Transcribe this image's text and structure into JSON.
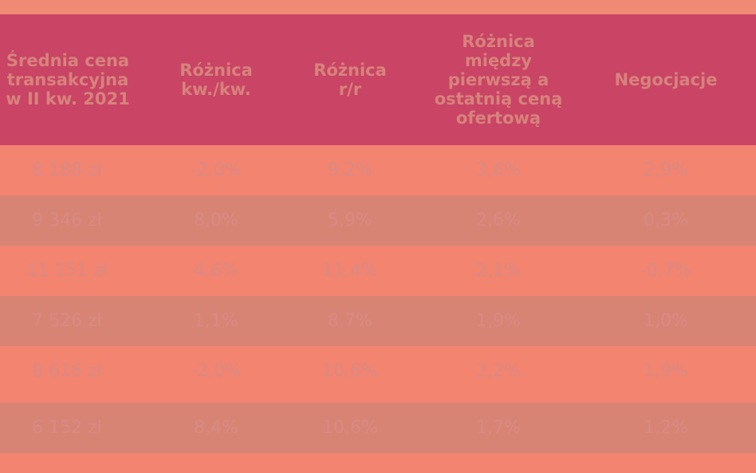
{
  "chart_data": {
    "type": "table",
    "columns": [
      "Średnia cena\ntransakcyjna\nw II kw. 2021",
      "Różnica\nkw./kw.",
      "Różnica\nr/r",
      "Różnica\nmiędzy\npierwszą a\nostatnią ceną\nofertową",
      "Negocjacje"
    ],
    "rows": [
      [
        "8 188 zł",
        "-2,0%",
        "9,2%",
        "3,6%",
        "2,9%"
      ],
      [
        "9 346 zł",
        "8,0%",
        "5,9%",
        "2,6%",
        "0,3%"
      ],
      [
        "11 151 zł",
        "4,6%",
        "11,4%",
        "2,1%",
        "-0,7%"
      ],
      [
        "7 526 zł",
        "1,1%",
        "8,7%",
        "1,9%",
        "1,0%"
      ],
      [
        "8 616 zł",
        "-2,0%",
        "10,6%",
        "2,2%",
        "1,9%"
      ],
      [
        "6 152 zł",
        "8,4%",
        "10,6%",
        "1,7%",
        "1,2%"
      ]
    ],
    "header_background": "#c94465",
    "row_colors": [
      "#f28470",
      "#d88474"
    ]
  }
}
